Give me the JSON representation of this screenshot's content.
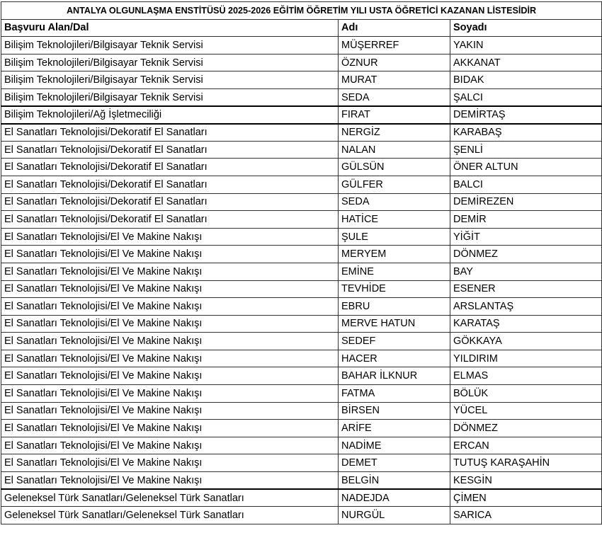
{
  "table": {
    "title": "ANTALYA OLGUNLAŞMA ENSTİTÜSÜ 2025-2026 EĞİTİM ÖĞRETİM YILI USTA ÖĞRETİCİ KAZANAN LİSTESİDİR",
    "header": [
      "Başvuru Alan/Dal",
      "Adı",
      "Soyadı"
    ],
    "rows": [
      [
        "Bilişim Teknolojileri/Bilgisayar Teknik Servisi",
        "MÜŞERREF",
        "YAKIN"
      ],
      [
        "Bilişim Teknolojileri/Bilgisayar Teknik Servisi",
        "ÖZNUR",
        "AKKANAT"
      ],
      [
        "Bilişim Teknolojileri/Bilgisayar Teknik Servisi",
        "MURAT",
        "BIDAK"
      ],
      [
        "Bilişim Teknolojileri/Bilgisayar Teknik Servisi",
        "SEDA",
        "ŞALCI"
      ],
      [
        "Bilişim Teknolojileri/Ağ İşletmeciliği",
        "FIRAT",
        "DEMİRTAŞ"
      ],
      [
        "El Sanatları Teknolojisi/Dekoratif El Sanatları",
        "NERGİZ",
        "KARABAŞ"
      ],
      [
        "El Sanatları Teknolojisi/Dekoratif El Sanatları",
        "NALAN",
        "ŞENLİ"
      ],
      [
        "El Sanatları Teknolojisi/Dekoratif El Sanatları",
        "GÜLSÜN",
        "ÖNER ALTUN"
      ],
      [
        "El Sanatları Teknolojisi/Dekoratif El Sanatları",
        "GÜLFER",
        "BALCI"
      ],
      [
        "El Sanatları Teknolojisi/Dekoratif El Sanatları",
        "SEDA",
        "DEMİREZEN"
      ],
      [
        "El Sanatları Teknolojisi/Dekoratif El Sanatları",
        "HATİCE",
        "DEMİR"
      ],
      [
        "El Sanatları Teknolojisi/El Ve Makine Nakışı",
        "ŞULE",
        "YİĞİT"
      ],
      [
        "El Sanatları Teknolojisi/El Ve Makine Nakışı",
        "MERYEM",
        "DÖNMEZ"
      ],
      [
        "El Sanatları Teknolojisi/El Ve Makine Nakışı",
        "EMİNE",
        "BAY"
      ],
      [
        "El Sanatları Teknolojisi/El Ve Makine Nakışı",
        "TEVHİDE",
        "ESENER"
      ],
      [
        "El Sanatları Teknolojisi/El Ve Makine Nakışı",
        "EBRU",
        "ARSLANTAŞ"
      ],
      [
        "El Sanatları Teknolojisi/El Ve Makine Nakışı",
        "MERVE HATUN",
        "KARATAŞ"
      ],
      [
        "El Sanatları Teknolojisi/El Ve Makine Nakışı",
        "SEDEF",
        "GÖKKAYA"
      ],
      [
        "El Sanatları Teknolojisi/El Ve Makine Nakışı",
        "HACER",
        "YILDIRIM"
      ],
      [
        "El Sanatları Teknolojisi/El Ve Makine Nakışı",
        "BAHAR İLKNUR",
        "ELMAS"
      ],
      [
        "El Sanatları Teknolojisi/El Ve Makine Nakışı",
        "FATMA",
        "BÖLÜK"
      ],
      [
        "El Sanatları Teknolojisi/El Ve Makine Nakışı",
        "BİRSEN",
        "YÜCEL"
      ],
      [
        "El Sanatları Teknolojisi/El Ve Makine Nakışı",
        "ARİFE",
        "DÖNMEZ"
      ],
      [
        "El Sanatları Teknolojisi/El Ve Makine Nakışı",
        "NADİME",
        "ERCAN"
      ],
      [
        "El Sanatları Teknolojisi/El Ve Makine Nakışı",
        "DEMET",
        "TUTUŞ KARAŞAHİN"
      ],
      [
        "El Sanatları Teknolojisi/El Ve Makine Nakışı",
        "BELGİN",
        "KESGİN"
      ],
      [
        "Geleneksel Türk Sanatları/Geleneksel Türk Sanatları",
        "NADEJDA",
        "ÇİMEN"
      ],
      [
        "Geleneksel Türk Sanatları/Geleneksel Türk Sanatları",
        "NURGÜL",
        "SARICA"
      ]
    ]
  }
}
